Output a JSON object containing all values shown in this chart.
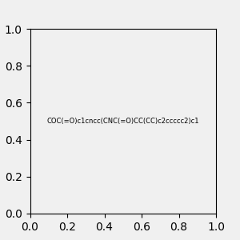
{
  "smiles": "COC(=O)c1cncc(CNC(=O)CC(CC)c2ccccc2)c1",
  "title": "",
  "background_color": "#f0f0f0",
  "fig_width": 3.0,
  "fig_height": 3.0,
  "dpi": 100
}
